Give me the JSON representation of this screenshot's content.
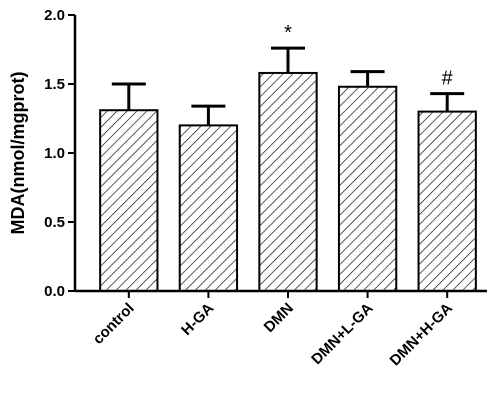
{
  "chart_data": {
    "type": "bar",
    "title": "",
    "xlabel": "",
    "ylabel": "MDA(nmol/mgprot)",
    "ylim": [
      0,
      2.0
    ],
    "yticks": [
      "0.0",
      "0.5",
      "1.0",
      "1.5",
      "2.0"
    ],
    "categories": [
      "control",
      "H-GA",
      "DMN",
      "DMN+L-GA",
      "DMN+H-GA"
    ],
    "values": [
      1.31,
      1.2,
      1.58,
      1.48,
      1.3
    ],
    "errors": [
      0.19,
      0.14,
      0.18,
      0.11,
      0.13
    ],
    "annotations": [
      "",
      "",
      "*",
      "",
      "#"
    ],
    "grid": false,
    "bar_fill": "hatched",
    "colors": {
      "bar_stroke": "#000000",
      "hatch": "#000000",
      "background": "#ffffff"
    }
  }
}
